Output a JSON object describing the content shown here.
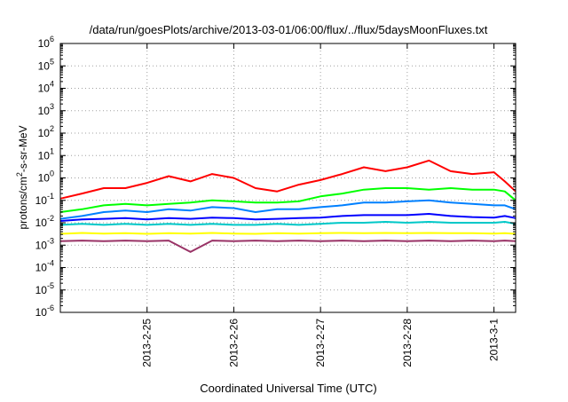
{
  "chart_data": {
    "type": "line",
    "title": "/data/run/goesPlots/archive/2013-03-01/06:00/flux/../flux/5daysMoonFluxes.txt",
    "xlabel": "Coordinated Universal Time (UTC)",
    "ylabel": "protons/cm²-s-sr-MeV",
    "y_scale": "log",
    "ylim": [
      1e-06,
      1000000.0
    ],
    "xlim": [
      "2013-02-24 00:00",
      "2013-03-01 06:00"
    ],
    "y_ticks": [
      {
        "value": 1e-06,
        "base": "10",
        "exp": "-6"
      },
      {
        "value": 1e-05,
        "base": "10",
        "exp": "-5"
      },
      {
        "value": 0.0001,
        "base": "10",
        "exp": "-4"
      },
      {
        "value": 0.001,
        "base": "10",
        "exp": "-3"
      },
      {
        "value": 0.01,
        "base": "10",
        "exp": "-2"
      },
      {
        "value": 0.1,
        "base": "10",
        "exp": "-1"
      },
      {
        "value": 1.0,
        "base": "10",
        "exp": "0"
      },
      {
        "value": 10.0,
        "base": "10",
        "exp": "1"
      },
      {
        "value": 100.0,
        "base": "10",
        "exp": "2"
      },
      {
        "value": 1000.0,
        "base": "10",
        "exp": "3"
      },
      {
        "value": 10000.0,
        "base": "10",
        "exp": "4"
      },
      {
        "value": 100000.0,
        "base": "10",
        "exp": "5"
      },
      {
        "value": 1000000.0,
        "base": "10",
        "exp": "6"
      }
    ],
    "x_ticks": [
      {
        "value": "2013-02-25 00:00",
        "label": "2013-2-25"
      },
      {
        "value": "2013-02-26 00:00",
        "label": "2013-2-26"
      },
      {
        "value": "2013-02-27 00:00",
        "label": "2013-2-27"
      },
      {
        "value": "2013-02-28 00:00",
        "label": "2013-2-28"
      },
      {
        "value": "2013-03-01 00:00",
        "label": "2013-3-1"
      }
    ],
    "grid": true,
    "series": [
      {
        "color": "#ff0000",
        "x": [
          "2013-02-24 00:00",
          "2013-02-24 06:00",
          "2013-02-24 12:00",
          "2013-02-24 18:00",
          "2013-02-25 00:00",
          "2013-02-25 06:00",
          "2013-02-25 12:00",
          "2013-02-25 18:00",
          "2013-02-26 00:00",
          "2013-02-26 06:00",
          "2013-02-26 12:00",
          "2013-02-26 18:00",
          "2013-02-27 00:00",
          "2013-02-27 06:00",
          "2013-02-27 12:00",
          "2013-02-27 18:00",
          "2013-02-28 00:00",
          "2013-02-28 06:00",
          "2013-02-28 12:00",
          "2013-02-28 18:00",
          "2013-03-01 00:00",
          "2013-03-01 03:00",
          "2013-03-01 06:00"
        ],
        "values": [
          0.12,
          0.2,
          0.35,
          0.35,
          0.6,
          1.2,
          0.7,
          1.5,
          1.0,
          0.35,
          0.25,
          0.5,
          0.8,
          1.5,
          3.0,
          2.0,
          3.0,
          6.0,
          2.0,
          1.5,
          1.8,
          0.7,
          0.25
        ]
      },
      {
        "color": "#00ff00",
        "x": [
          "2013-02-24 00:00",
          "2013-02-24 06:00",
          "2013-02-24 12:00",
          "2013-02-24 18:00",
          "2013-02-25 00:00",
          "2013-02-25 06:00",
          "2013-02-25 12:00",
          "2013-02-25 18:00",
          "2013-02-26 00:00",
          "2013-02-26 06:00",
          "2013-02-26 12:00",
          "2013-02-26 18:00",
          "2013-02-27 00:00",
          "2013-02-27 06:00",
          "2013-02-27 12:00",
          "2013-02-27 18:00",
          "2013-02-28 00:00",
          "2013-02-28 06:00",
          "2013-02-28 12:00",
          "2013-02-28 18:00",
          "2013-03-01 00:00",
          "2013-03-01 03:00",
          "2013-03-01 06:00"
        ],
        "values": [
          0.03,
          0.04,
          0.06,
          0.07,
          0.06,
          0.07,
          0.08,
          0.1,
          0.09,
          0.08,
          0.08,
          0.09,
          0.15,
          0.2,
          0.3,
          0.35,
          0.35,
          0.3,
          0.35,
          0.3,
          0.3,
          0.25,
          0.1
        ]
      },
      {
        "color": "#0080ff",
        "x": [
          "2013-02-24 00:00",
          "2013-02-24 06:00",
          "2013-02-24 12:00",
          "2013-02-24 18:00",
          "2013-02-25 00:00",
          "2013-02-25 06:00",
          "2013-02-25 12:00",
          "2013-02-25 18:00",
          "2013-02-26 00:00",
          "2013-02-26 06:00",
          "2013-02-26 12:00",
          "2013-02-26 18:00",
          "2013-02-27 00:00",
          "2013-02-27 06:00",
          "2013-02-27 12:00",
          "2013-02-27 18:00",
          "2013-02-28 00:00",
          "2013-02-28 06:00",
          "2013-02-28 12:00",
          "2013-02-28 18:00",
          "2013-03-01 00:00",
          "2013-03-01 03:00",
          "2013-03-01 06:00"
        ],
        "values": [
          0.015,
          0.02,
          0.03,
          0.035,
          0.03,
          0.04,
          0.035,
          0.05,
          0.045,
          0.03,
          0.04,
          0.04,
          0.05,
          0.06,
          0.08,
          0.08,
          0.09,
          0.1,
          0.08,
          0.07,
          0.06,
          0.06,
          0.04
        ]
      },
      {
        "color": "#0000ff",
        "x": [
          "2013-02-24 00:00",
          "2013-02-24 06:00",
          "2013-02-24 12:00",
          "2013-02-24 18:00",
          "2013-02-25 00:00",
          "2013-02-25 06:00",
          "2013-02-25 12:00",
          "2013-02-25 18:00",
          "2013-02-26 00:00",
          "2013-02-26 06:00",
          "2013-02-26 12:00",
          "2013-02-26 18:00",
          "2013-02-27 00:00",
          "2013-02-27 06:00",
          "2013-02-27 12:00",
          "2013-02-27 18:00",
          "2013-02-28 00:00",
          "2013-02-28 06:00",
          "2013-02-28 12:00",
          "2013-02-28 18:00",
          "2013-03-01 00:00",
          "2013-03-01 03:00",
          "2013-03-01 06:00"
        ],
        "values": [
          0.012,
          0.014,
          0.015,
          0.016,
          0.014,
          0.016,
          0.015,
          0.017,
          0.016,
          0.014,
          0.015,
          0.016,
          0.017,
          0.02,
          0.022,
          0.022,
          0.022,
          0.025,
          0.02,
          0.018,
          0.017,
          0.02,
          0.016
        ]
      },
      {
        "color": "#00c8c8",
        "x": [
          "2013-02-24 00:00",
          "2013-02-24 06:00",
          "2013-02-24 12:00",
          "2013-02-24 18:00",
          "2013-02-25 00:00",
          "2013-02-25 06:00",
          "2013-02-25 12:00",
          "2013-02-25 18:00",
          "2013-02-26 00:00",
          "2013-02-26 06:00",
          "2013-02-26 12:00",
          "2013-02-26 18:00",
          "2013-02-27 00:00",
          "2013-02-27 06:00",
          "2013-02-27 12:00",
          "2013-02-27 18:00",
          "2013-02-28 00:00",
          "2013-02-28 06:00",
          "2013-02-28 12:00",
          "2013-02-28 18:00",
          "2013-03-01 00:00",
          "2013-03-01 03:00",
          "2013-03-01 06:00"
        ],
        "values": [
          0.008,
          0.009,
          0.008,
          0.009,
          0.008,
          0.009,
          0.008,
          0.009,
          0.008,
          0.008,
          0.009,
          0.008,
          0.009,
          0.01,
          0.01,
          0.011,
          0.01,
          0.011,
          0.01,
          0.01,
          0.01,
          0.011,
          0.009
        ]
      },
      {
        "color": "#ffff00",
        "x": [
          "2013-02-24 00:00",
          "2013-02-24 06:00",
          "2013-02-24 12:00",
          "2013-02-24 18:00",
          "2013-02-25 00:00",
          "2013-02-25 06:00",
          "2013-02-25 12:00",
          "2013-02-25 18:00",
          "2013-02-26 00:00",
          "2013-02-26 06:00",
          "2013-02-26 12:00",
          "2013-02-26 18:00",
          "2013-02-27 00:00",
          "2013-02-27 06:00",
          "2013-02-27 12:00",
          "2013-02-27 18:00",
          "2013-02-28 00:00",
          "2013-02-28 06:00",
          "2013-02-28 12:00",
          "2013-02-28 18:00",
          "2013-03-01 00:00",
          "2013-03-01 03:00",
          "2013-03-01 06:00"
        ],
        "values": [
          0.0032,
          0.0035,
          0.0033,
          0.0034,
          0.0032,
          0.0034,
          0.0033,
          0.0035,
          0.0033,
          0.0032,
          0.0034,
          0.0033,
          0.0034,
          0.0035,
          0.0034,
          0.0035,
          0.0034,
          0.0035,
          0.0034,
          0.0034,
          0.0033,
          0.0034,
          0.0032
        ]
      },
      {
        "color": "#993366",
        "x": [
          "2013-02-24 00:00",
          "2013-02-24 06:00",
          "2013-02-24 12:00",
          "2013-02-24 18:00",
          "2013-02-25 00:00",
          "2013-02-25 06:00",
          "2013-02-25 12:00",
          "2013-02-25 18:00",
          "2013-02-26 00:00",
          "2013-02-26 06:00",
          "2013-02-26 12:00",
          "2013-02-26 18:00",
          "2013-02-27 00:00",
          "2013-02-27 06:00",
          "2013-02-27 12:00",
          "2013-02-27 18:00",
          "2013-02-28 00:00",
          "2013-02-28 06:00",
          "2013-02-28 12:00",
          "2013-02-28 18:00",
          "2013-03-01 00:00",
          "2013-03-01 03:00",
          "2013-03-01 06:00"
        ],
        "values": [
          0.0015,
          0.0016,
          0.0015,
          0.0016,
          0.0015,
          0.0016,
          0.0005,
          0.0016,
          0.0015,
          0.0016,
          0.0015,
          0.0016,
          0.0015,
          0.0016,
          0.0015,
          0.0016,
          0.0015,
          0.0016,
          0.0015,
          0.0016,
          0.0015,
          0.0016,
          0.0015
        ]
      }
    ]
  }
}
